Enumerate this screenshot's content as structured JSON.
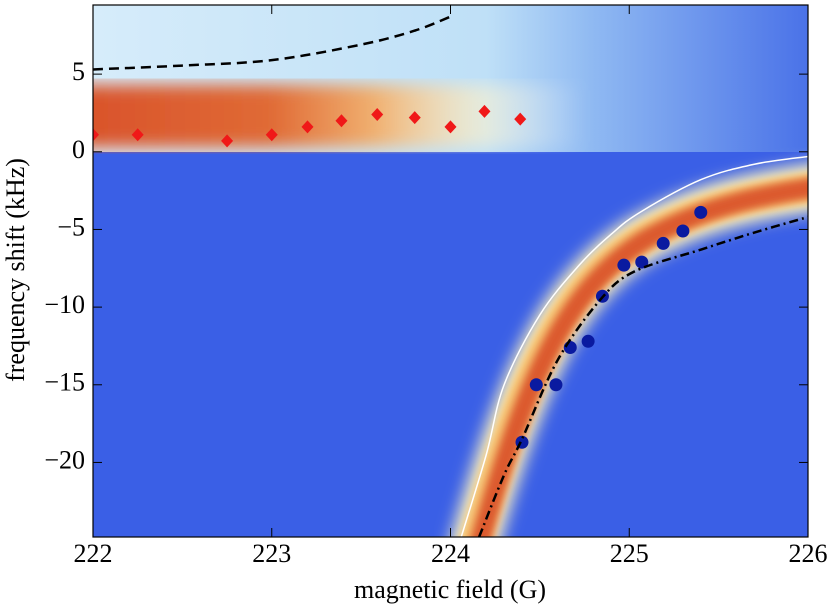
{
  "chart_data": {
    "type": "scatter",
    "xlabel": "magnetic field (G)",
    "ylabel": "frequency shift (kHz)",
    "xlim": [
      222,
      226
    ],
    "ylim": [
      -24.8,
      9.45
    ],
    "xticks": [
      222,
      223,
      224,
      225,
      226
    ],
    "yticks": [
      {
        "value": -20,
        "label": "−20"
      },
      {
        "value": -15,
        "label": "−15"
      },
      {
        "value": -10,
        "label": "−10"
      },
      {
        "value": -5,
        "label": "−5"
      },
      0,
      5
    ],
    "series": [
      {
        "style": "diamond",
        "color": "#f01818",
        "x": [
          222.0,
          222.25,
          222.75,
          223.0,
          223.2,
          223.39,
          223.59,
          223.8,
          224.0,
          224.19,
          224.39
        ],
        "values": [
          1.1,
          1.1,
          0.7,
          1.1,
          1.6,
          2.0,
          2.4,
          2.2,
          1.6,
          2.6,
          2.1
        ]
      },
      {
        "style": "circle",
        "color": "#0a1aa0",
        "x": [
          224.4,
          224.48,
          224.59,
          224.67,
          224.77,
          224.85,
          224.97,
          225.07,
          225.19,
          225.3,
          225.4
        ],
        "values": [
          -18.7,
          -15.0,
          -15.0,
          -12.6,
          -12.2,
          -9.3,
          -7.3,
          -7.1,
          -5.9,
          -5.1,
          -3.9
        ]
      },
      {
        "style": "dashed",
        "color": "#000000",
        "x": [
          222.0,
          222.5,
          223.0,
          223.5,
          223.8,
          224.0
        ],
        "values": [
          5.3,
          5.55,
          5.9,
          6.9,
          7.8,
          8.7
        ]
      },
      {
        "style": "solid",
        "color": "#ffffff",
        "x": [
          224.06,
          224.2,
          224.3,
          224.5,
          224.72,
          224.9,
          225.06,
          225.4,
          225.7,
          226.0
        ],
        "values": [
          -24.8,
          -19.5,
          -15.0,
          -10.5,
          -7.3,
          -5.3,
          -3.9,
          -1.8,
          -0.8,
          -0.3
        ]
      },
      {
        "style": "dashdot",
        "color": "#000000",
        "x": [
          224.16,
          224.3,
          224.4,
          224.6,
          224.84,
          225.03,
          225.4,
          225.7,
          226.0
        ],
        "values": [
          -24.8,
          -20.8,
          -18.5,
          -13.4,
          -9.5,
          -7.7,
          -6.3,
          -5.2,
          -4.2
        ]
      }
    ]
  }
}
